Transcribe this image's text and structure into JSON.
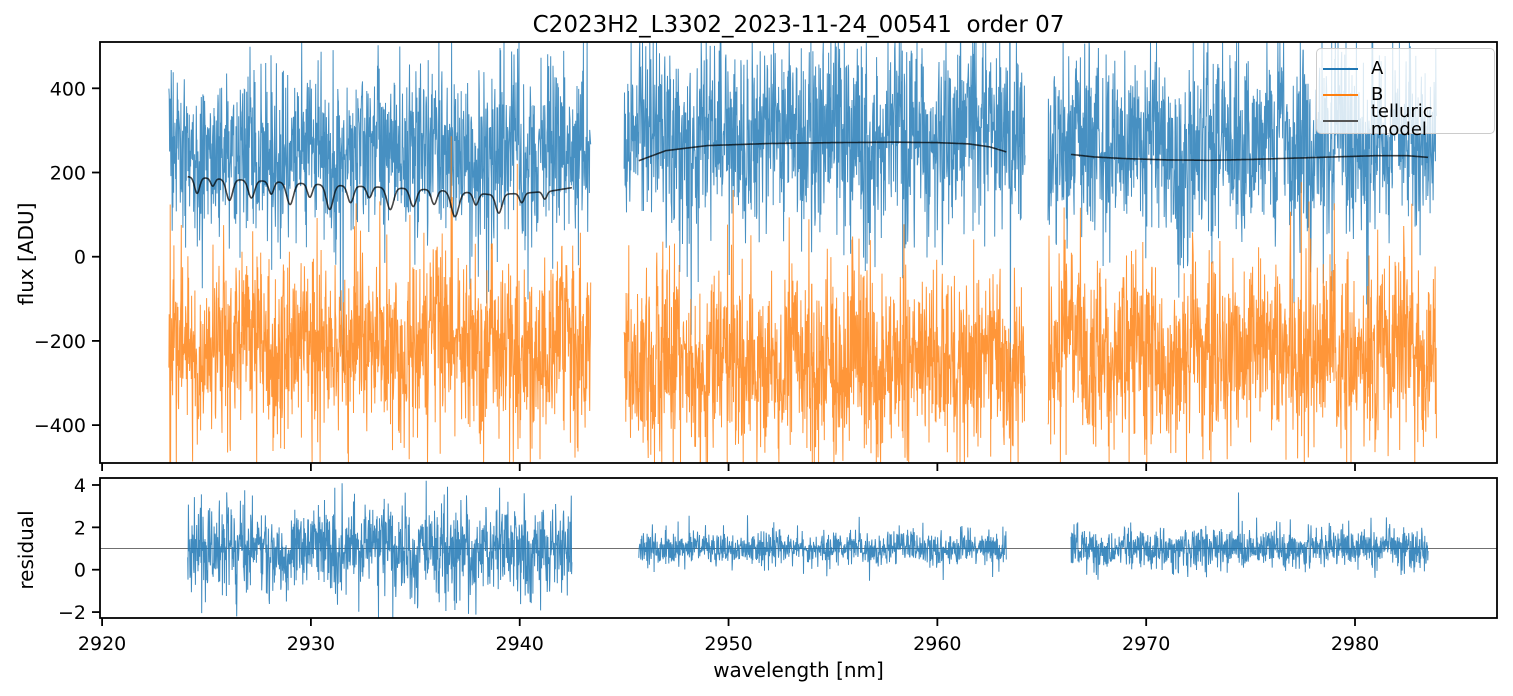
{
  "title": "C2023H2_L3302_2023-11-24_00541  order 07",
  "chart_data": {
    "type": "line",
    "title": "C2023H2_L3302_2023-11-24_00541  order 07",
    "xlabel": "wavelength [nm]",
    "xlim": [
      2919.9,
      2986.8
    ],
    "xticks": [
      2920,
      2930,
      2940,
      2950,
      2960,
      2970,
      2980
    ],
    "grid": false,
    "colors": {
      "A": "#1f77b4",
      "B": "#ff7f0e",
      "telluric_model": "#555555",
      "residual_line": "#1f77b4",
      "reference_line": "#606060",
      "spine": "#000000"
    },
    "legend": {
      "position": "upper right",
      "entries": [
        {
          "label": "A",
          "color": "#1f77b4"
        },
        {
          "label": "B",
          "color": "#ff7f0e"
        },
        {
          "label": "telluric model",
          "color": "#555555"
        }
      ]
    },
    "panels": [
      {
        "name": "flux",
        "ylabel": "flux [ADU]",
        "ylim": [
          -490,
          510
        ],
        "yticks": [
          400,
          200,
          0,
          -200,
          -400
        ]
      },
      {
        "name": "residual",
        "ylabel": "residual",
        "ylim": [
          -2.28,
          4.33
        ],
        "yticks": [
          4,
          2,
          0,
          -2
        ],
        "reference_line_y": 1.0
      }
    ],
    "segments": [
      {
        "id": 1,
        "wavelength_range": [
          2923.2,
          2943.4
        ],
        "model_wavelength_range": [
          2924.1,
          2942.5
        ],
        "A": {
          "mean": 245,
          "std": 100
        },
        "B": {
          "mean": -215,
          "std": 103
        },
        "residual": {
          "mean": 1.0,
          "std": 1.05
        },
        "telluric_base": [
          [
            2924.1,
            190
          ],
          [
            2925.5,
            185
          ],
          [
            2927,
            182
          ],
          [
            2929,
            176
          ],
          [
            2931,
            170
          ],
          [
            2933,
            166
          ],
          [
            2935,
            161
          ],
          [
            2937,
            155
          ],
          [
            2938.5,
            148
          ],
          [
            2940,
            150
          ],
          [
            2941.5,
            156
          ],
          [
            2942.5,
            164
          ]
        ],
        "telluric_dips": [
          [
            2924.55,
            38,
            0.12
          ],
          [
            2925.3,
            18,
            0.1
          ],
          [
            2926.1,
            50,
            0.15
          ],
          [
            2927.15,
            42,
            0.15
          ],
          [
            2928.1,
            30,
            0.12
          ],
          [
            2929.0,
            52,
            0.16
          ],
          [
            2929.95,
            32,
            0.12
          ],
          [
            2930.9,
            58,
            0.16
          ],
          [
            2931.9,
            40,
            0.14
          ],
          [
            2932.8,
            26,
            0.12
          ],
          [
            2933.8,
            52,
            0.16
          ],
          [
            2934.9,
            42,
            0.15
          ],
          [
            2935.9,
            34,
            0.13
          ],
          [
            2936.9,
            60,
            0.18
          ],
          [
            2937.9,
            28,
            0.12
          ],
          [
            2939.0,
            45,
            0.15
          ],
          [
            2940.1,
            22,
            0.11
          ],
          [
            2941.2,
            18,
            0.1
          ]
        ]
      },
      {
        "id": 2,
        "wavelength_range": [
          2945.0,
          2964.2
        ],
        "model_wavelength_range": [
          2945.7,
          2963.3
        ],
        "A": {
          "mean": 285,
          "std": 112
        },
        "B": {
          "mean": -255,
          "std": 110
        },
        "residual": {
          "mean": 1.0,
          "std": 0.38
        },
        "telluric_base": [
          [
            2945.7,
            228
          ],
          [
            2947,
            252
          ],
          [
            2949,
            264
          ],
          [
            2952,
            269
          ],
          [
            2955,
            271
          ],
          [
            2958,
            272
          ],
          [
            2960,
            271
          ],
          [
            2961.5,
            268
          ],
          [
            2962.5,
            261
          ],
          [
            2963.3,
            249
          ]
        ],
        "telluric_dips": []
      },
      {
        "id": 3,
        "wavelength_range": [
          2965.3,
          2983.9
        ],
        "model_wavelength_range": [
          2966.4,
          2983.5
        ],
        "A": {
          "mean": 262,
          "std": 108
        },
        "B": {
          "mean": -225,
          "std": 108
        },
        "residual": {
          "mean": 1.0,
          "std": 0.45
        },
        "telluric_base": [
          [
            2966.4,
            243
          ],
          [
            2967.5,
            237
          ],
          [
            2969,
            233
          ],
          [
            2971,
            230
          ],
          [
            2973,
            229
          ],
          [
            2975,
            231
          ],
          [
            2977,
            234
          ],
          [
            2979,
            237
          ],
          [
            2981,
            240
          ],
          [
            2982.5,
            240
          ],
          [
            2983.5,
            236
          ]
        ],
        "telluric_dips": []
      }
    ]
  }
}
